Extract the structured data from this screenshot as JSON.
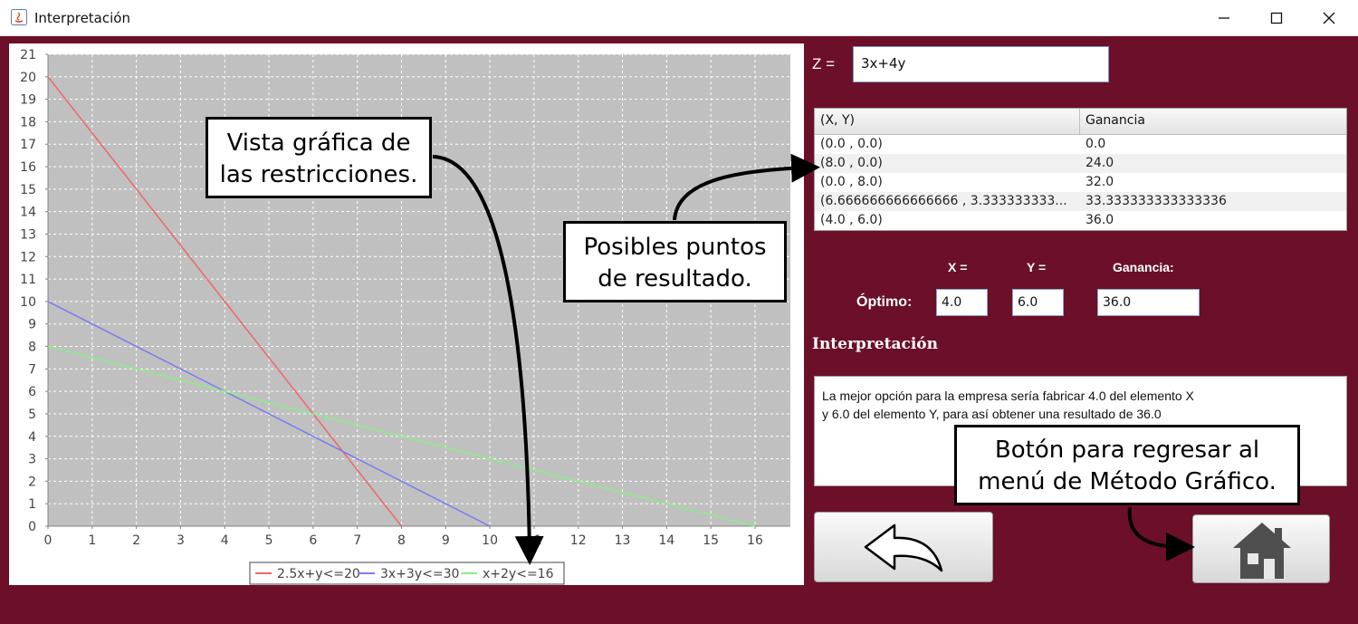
{
  "window": {
    "title": "Interpretación"
  },
  "objective": {
    "label": "Z =",
    "value": "3x+4y"
  },
  "table": {
    "headers": [
      "(X, Y)",
      "Ganancia"
    ],
    "rows": [
      [
        "(0.0 , 0.0)",
        "0.0"
      ],
      [
        "(8.0 , 0.0)",
        "24.0"
      ],
      [
        "(0.0 , 8.0)",
        "32.0"
      ],
      [
        "(6.666666666666666 , 3.333333333...",
        "33.333333333333336"
      ],
      [
        "(4.0 , 6.0)",
        "36.0"
      ]
    ]
  },
  "optimum": {
    "x_label": "X =",
    "y_label": "Y =",
    "gain_label": "Ganancia:",
    "label": "Óptimo:",
    "x_value": "4.0",
    "y_value": "6.0",
    "gain_value": "36.0"
  },
  "interpretation": {
    "title": "Interpretación",
    "line1": "La mejor opción para la empresa sería fabricar 4.0 del elemento X",
    "line2": "y 6.0 del elemento Y, para así obtener una resultado de 36.0"
  },
  "buttons": {
    "back_icon": "back-arrow-icon",
    "home_icon": "home-icon"
  },
  "callouts": {
    "chart": [
      "Vista gráfica de",
      "las restricciones."
    ],
    "points": [
      "Posibles puntos",
      "de resultado."
    ],
    "button": [
      "Botón para regresar al",
      "menú de Método Gráfico."
    ]
  },
  "chart_data": {
    "type": "line",
    "xlim": [
      0,
      16.8
    ],
    "ylim": [
      0,
      21
    ],
    "x_ticks": [
      0,
      1,
      2,
      3,
      4,
      5,
      6,
      7,
      8,
      9,
      10,
      11,
      12,
      13,
      14,
      15,
      16
    ],
    "y_ticks": [
      0,
      1,
      2,
      3,
      4,
      5,
      6,
      7,
      8,
      9,
      10,
      11,
      12,
      13,
      14,
      15,
      16,
      17,
      18,
      19,
      20,
      21
    ],
    "grid": true,
    "legend_position": "bottom",
    "series": [
      {
        "name": "2.5x+y<=20",
        "color": "#ef6666",
        "points": [
          [
            0,
            20
          ],
          [
            8,
            0
          ]
        ]
      },
      {
        "name": "3x+3y<=30",
        "color": "#7b7bf2",
        "points": [
          [
            0,
            10
          ],
          [
            10,
            0
          ]
        ]
      },
      {
        "name": "x+2y<=16",
        "color": "#88ef88",
        "points": [
          [
            0,
            8
          ],
          [
            16,
            0
          ]
        ]
      }
    ]
  }
}
